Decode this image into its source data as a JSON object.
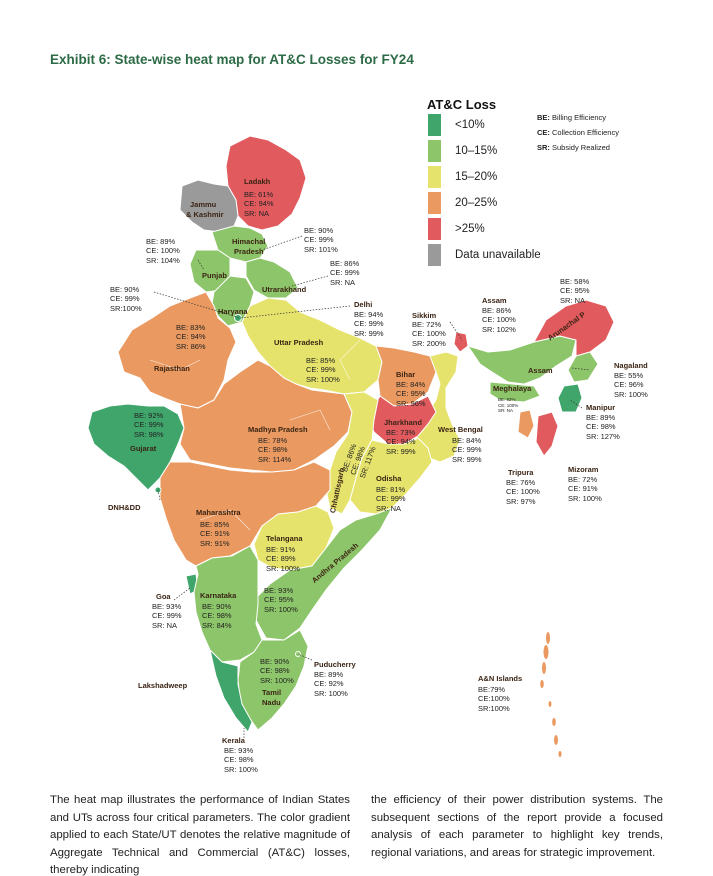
{
  "title": "Exhibit 6: State-wise heat map for AT&C Losses for FY24",
  "legend": {
    "title": "AT&C Loss",
    "items": [
      {
        "label": "<10%",
        "color": "#3fa56a"
      },
      {
        "label": "10–15%",
        "color": "#8dc56a"
      },
      {
        "label": "15–20%",
        "color": "#e6e36c"
      },
      {
        "label": "20–25%",
        "color": "#ea9a60"
      },
      {
        "label": ">25%",
        "color": "#e05a5e"
      },
      {
        "label": "Data unavailable",
        "color": "#9a9a9a"
      }
    ]
  },
  "abbreviations": [
    {
      "key": "BE:",
      "text": " Billing Efficiency"
    },
    {
      "key": "CE:",
      "text": " Collection Efficiency"
    },
    {
      "key": "SR:",
      "text": " Subsidy Realized"
    }
  ],
  "labels": {
    "ladakh": "Ladakh",
    "jk1": "Jammu",
    "jk2": "& Kashmir",
    "himachal1": "Himachal",
    "himachal2": "Pradesh",
    "punjab": "Punjab",
    "uttarakhand": "Utrarakhand",
    "haryana": "Haryana",
    "delhi": "Delhi",
    "rajasthan": "Rajasthan",
    "up": "Uttar Pradesh",
    "bihar": "Bihar",
    "sikkim": "Sikkim",
    "assam_top": "Assam",
    "assam_map": "Assam",
    "arunachal": "Arunachal P",
    "meghalaya": "Meghalaya",
    "nagaland": "Nagaland",
    "manipur": "Manipur",
    "mizoram": "Mizoram",
    "tripura": "Tripura",
    "gujarat": "Gujarat",
    "mp": "Madhya Pradesh",
    "jharkhand": "Jharkhand",
    "wb": "West Bengal",
    "chhattisgarh": "Chhattisgarh",
    "odisha": "Odisha",
    "dnhdd": "DNH&DD",
    "maharashtra": "Maharashtra",
    "telangana": "Telangana",
    "ap": "Andhra Pradesh",
    "goa": "Goa",
    "karnataka": "Karnataka",
    "lakshadweep": "Lakshadweep",
    "puducherry": "Puducherry",
    "tn1": "Tamil",
    "tn2": "Nadu",
    "kerala": "Kerala",
    "an": "A&N Islands"
  },
  "stats": {
    "ladakh": [
      "BE: 61%",
      "CE: 94%",
      "SR: NA"
    ],
    "himachal": [
      "BE: 90%",
      "CE: 99%",
      "SR: 101%"
    ],
    "punjab": [
      "BE: 89%",
      "CE: 100%",
      "SR: 104%"
    ],
    "uttarakhand": [
      "BE: 86%",
      "CE: 99%",
      "SR: NA"
    ],
    "haryana": [
      "BE: 90%",
      "CE: 99%",
      "SR:100%"
    ],
    "delhi": [
      "BE: 94%",
      "CE: 99%",
      "SR: 99%"
    ],
    "rajasthan": [
      "BE: 83%",
      "CE: 94%",
      "SR: 86%"
    ],
    "up": [
      "BE: 85%",
      "CE: 99%",
      "SR: 100%"
    ],
    "bihar": [
      "BE: 84%",
      "CE: 95%",
      "SR: 96%"
    ],
    "sikkim": [
      "BE: 72%",
      "CE: 100%",
      "SR: 200%"
    ],
    "assam": [
      "BE: 86%",
      "CE: 100%",
      "SR: 102%"
    ],
    "arunachal": [
      "BE: 58%",
      "CE: 95%",
      "SR: NA"
    ],
    "meghalaya": [
      "BE: 82%",
      "CE: 100%",
      "SR: NA"
    ],
    "nagaland": [
      "BE: 55%",
      "CE: 96%",
      "SR: 100%"
    ],
    "manipur": [
      "BE: 89%",
      "CE: 98%",
      "SR: 127%"
    ],
    "mizoram": [
      "BE: 72%",
      "CE: 91%",
      "SR: 100%"
    ],
    "tripura": [
      "BE: 76%",
      "CE: 100%",
      "SR: 97%"
    ],
    "gujarat": [
      "BE: 92%",
      "CE: 99%",
      "SR: 98%"
    ],
    "mp": [
      "BE: 78%",
      "CE: 98%",
      "SR: 114%"
    ],
    "jharkhand": [
      "BE: 73%",
      "CE: 94%",
      "SR: 99%"
    ],
    "wb": [
      "BE: 84%",
      "CE: 99%",
      "SR: 99%"
    ],
    "chhattisgarh": [
      "BE: 86%",
      "CE: 98%",
      "SR: 117%"
    ],
    "odisha": [
      "BE: 81%",
      "CE: 99%",
      "SR: NA"
    ],
    "maharashtra": [
      "BE: 85%",
      "CE: 91%",
      "SR: 91%"
    ],
    "telangana": [
      "BE: 91%",
      "CE: 89%",
      "SR: 100%"
    ],
    "ap": [
      "BE: 93%",
      "CE: 95%",
      "SR: 100%"
    ],
    "goa": [
      "BE: 93%",
      "CE: 99%",
      "SR: NA"
    ],
    "karnataka": [
      "BE: 90%",
      "CE: 98%",
      "SR: 84%"
    ],
    "tn": [
      "BE: 90%",
      "CE: 98%",
      "SR: 100%"
    ],
    "puducherry": [
      "BE: 89%",
      "CE: 92%",
      "SR: 100%"
    ],
    "kerala": [
      "BE: 93%",
      "CE: 98%",
      "SR: 100%"
    ],
    "an": [
      "BE:79%",
      "CE:100%",
      "SR:100%"
    ]
  },
  "paragraph_left": "The heat map illustrates the performance of Indian States and UTs across four critical parameters. The color gradient applied to each State/UT denotes the relative magnitude of Aggregate Technical and Commercial (AT&C) losses, thereby indicating",
  "paragraph_right": "the efficiency of their power distribution systems. The subsequent sections of the report provide a focused analysis of each parameter to highlight key trends, regional variations, and areas for strategic improvement."
}
